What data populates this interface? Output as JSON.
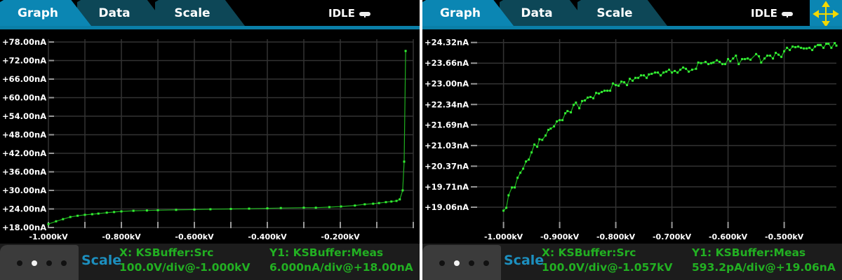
{
  "colors": {
    "tab_active": "#0b86b3",
    "tab_inactive": "#0d4757",
    "trace": "#33ee33",
    "scale_label": "#1c8fbf",
    "info_text": "#22b022"
  },
  "panels": [
    {
      "tabs": [
        {
          "label": "Graph",
          "active": true
        },
        {
          "label": "Data"
        },
        {
          "label": "Scale"
        }
      ],
      "status": "IDLE",
      "status_icon": "pill-icon",
      "bottom": {
        "scale_label": "Scale",
        "x_trace": "X: KSBuffer:Src",
        "x_scale": "100.0V/div@-1.000kV",
        "y_trace": "Y1: KSBuffer:Meas",
        "y_scale": "6.000nA/div@+18.00nA",
        "page_dots": 4,
        "active_dot": 2
      }
    },
    {
      "tabs": [
        {
          "label": "Graph",
          "active": true
        },
        {
          "label": "Data"
        },
        {
          "label": "Scale"
        }
      ],
      "status": "IDLE",
      "status_icon": "pill-icon",
      "corner_icon": "move-arrows-icon",
      "bottom": {
        "scale_label": "Scale",
        "x_trace": "X: KSBuffer:Src",
        "x_scale": "100.0V/div@-1.057kV",
        "y_trace": "Y1: KSBuffer:Meas",
        "y_scale": "593.2pA/div@+19.06nA",
        "page_dots": 4,
        "active_dot": 2
      }
    }
  ],
  "chart_data": [
    {
      "type": "line",
      "xlim": [
        -1.0,
        0.0
      ],
      "ylim": [
        18.0,
        78.0
      ],
      "grid": true,
      "x_ticks": [
        {
          "v": -1.0,
          "label": "-1.000kV"
        },
        {
          "v": -0.8,
          "label": "-0.800kV"
        },
        {
          "v": -0.6,
          "label": "-0.600kV"
        },
        {
          "v": -0.4,
          "label": "-0.400kV"
        },
        {
          "v": -0.2,
          "label": "-0.200kV"
        }
      ],
      "x_grid_step": 0.1,
      "y_ticks": [
        {
          "v": 78,
          "label": "+78.00nA"
        },
        {
          "v": 72,
          "label": "+72.00nA"
        },
        {
          "v": 66,
          "label": "+66.00nA"
        },
        {
          "v": 60,
          "label": "+60.00nA"
        },
        {
          "v": 54,
          "label": "+54.00nA"
        },
        {
          "v": 48,
          "label": "+48.00nA"
        },
        {
          "v": 42,
          "label": "+42.00nA"
        },
        {
          "v": 36,
          "label": "+36.00nA"
        },
        {
          "v": 30,
          "label": "+30.00nA"
        },
        {
          "v": 24,
          "label": "+24.00nA"
        },
        {
          "v": 18,
          "label": "+18.00nA"
        }
      ],
      "points": [
        [
          -1.0,
          19.1
        ],
        [
          -0.979,
          20.0
        ],
        [
          -0.96,
          20.7
        ],
        [
          -0.94,
          21.4
        ],
        [
          -0.92,
          21.8
        ],
        [
          -0.9,
          22.1
        ],
        [
          -0.88,
          22.3
        ],
        [
          -0.863,
          22.5
        ],
        [
          -0.84,
          22.8
        ],
        [
          -0.82,
          23.0
        ],
        [
          -0.8,
          23.2
        ],
        [
          -0.767,
          23.4
        ],
        [
          -0.73,
          23.5
        ],
        [
          -0.7,
          23.6
        ],
        [
          -0.65,
          23.7
        ],
        [
          -0.6,
          23.8
        ],
        [
          -0.556,
          23.9
        ],
        [
          -0.5,
          24.0
        ],
        [
          -0.45,
          24.1
        ],
        [
          -0.4,
          24.2
        ],
        [
          -0.363,
          24.3
        ],
        [
          -0.3,
          24.4
        ],
        [
          -0.267,
          24.4
        ],
        [
          -0.23,
          24.6
        ],
        [
          -0.198,
          24.8
        ],
        [
          -0.16,
          25.1
        ],
        [
          -0.133,
          25.5
        ],
        [
          -0.11,
          25.7
        ],
        [
          -0.094,
          25.9
        ],
        [
          -0.075,
          26.2
        ],
        [
          -0.06,
          26.4
        ],
        [
          -0.046,
          26.6
        ],
        [
          -0.037,
          27.1
        ],
        [
          -0.029,
          30.0
        ],
        [
          -0.025,
          39.3
        ],
        [
          -0.021,
          75.1
        ]
      ]
    },
    {
      "type": "line",
      "xlim": [
        -1.057,
        -0.407
      ],
      "ylim": [
        18.41,
        24.32
      ],
      "grid": true,
      "x_ticks": [
        {
          "v": -1.0,
          "label": "-1.000kV"
        },
        {
          "v": -0.9,
          "label": "-0.900kV"
        },
        {
          "v": -0.8,
          "label": "-0.800kV"
        },
        {
          "v": -0.7,
          "label": "-0.700kV"
        },
        {
          "v": -0.6,
          "label": "-0.600kV"
        },
        {
          "v": -0.5,
          "label": "-0.500kV"
        }
      ],
      "x_grid_step": 0.1,
      "y_ticks": [
        {
          "v": 24.32,
          "label": "+24.32nA"
        },
        {
          "v": 23.66,
          "label": "+23.66nA"
        },
        {
          "v": 23.0,
          "label": "+23.00nA"
        },
        {
          "v": 22.34,
          "label": "+22.34nA"
        },
        {
          "v": 21.69,
          "label": "+21.69nA"
        },
        {
          "v": 21.03,
          "label": "+21.03nA"
        },
        {
          "v": 20.37,
          "label": "+20.37nA"
        },
        {
          "v": 19.71,
          "label": "+19.71nA"
        },
        {
          "v": 19.06,
          "label": "+19.06nA"
        }
      ],
      "points": [
        [
          -1.0,
          18.95
        ],
        [
          -0.995,
          19.04
        ],
        [
          -0.991,
          19.44
        ],
        [
          -0.985,
          19.69
        ],
        [
          -0.98,
          19.69
        ],
        [
          -0.975,
          20.0
        ],
        [
          -0.97,
          20.16
        ],
        [
          -0.965,
          20.29
        ],
        [
          -0.96,
          20.52
        ],
        [
          -0.955,
          20.58
        ],
        [
          -0.95,
          20.81
        ],
        [
          -0.945,
          21.06
        ],
        [
          -0.94,
          20.99
        ],
        [
          -0.936,
          21.23
        ],
        [
          -0.931,
          21.21
        ],
        [
          -0.925,
          21.35
        ],
        [
          -0.92,
          21.53
        ],
        [
          -0.916,
          21.57
        ],
        [
          -0.91,
          21.64
        ],
        [
          -0.905,
          21.8
        ],
        [
          -0.9,
          21.84
        ],
        [
          -0.895,
          21.84
        ],
        [
          -0.89,
          22.06
        ],
        [
          -0.886,
          22.13
        ],
        [
          -0.88,
          22.09
        ],
        [
          -0.875,
          22.33
        ],
        [
          -0.871,
          22.4
        ],
        [
          -0.865,
          22.22
        ],
        [
          -0.86,
          22.45
        ],
        [
          -0.855,
          22.47
        ],
        [
          -0.85,
          22.56
        ],
        [
          -0.845,
          22.58
        ],
        [
          -0.84,
          22.54
        ],
        [
          -0.835,
          22.71
        ],
        [
          -0.83,
          22.69
        ],
        [
          -0.825,
          22.74
        ],
        [
          -0.82,
          22.78
        ],
        [
          -0.815,
          22.78
        ],
        [
          -0.81,
          22.78
        ],
        [
          -0.805,
          23.01
        ],
        [
          -0.8,
          22.96
        ],
        [
          -0.795,
          22.94
        ],
        [
          -0.79,
          23.07
        ],
        [
          -0.785,
          23.05
        ],
        [
          -0.78,
          22.96
        ],
        [
          -0.775,
          23.16
        ],
        [
          -0.77,
          23.1
        ],
        [
          -0.765,
          23.19
        ],
        [
          -0.76,
          23.19
        ],
        [
          -0.755,
          23.27
        ],
        [
          -0.75,
          23.27
        ],
        [
          -0.745,
          23.19
        ],
        [
          -0.741,
          23.3
        ],
        [
          -0.736,
          23.32
        ],
        [
          -0.73,
          23.36
        ],
        [
          -0.725,
          23.36
        ],
        [
          -0.72,
          23.27
        ],
        [
          -0.715,
          23.36
        ],
        [
          -0.71,
          23.39
        ],
        [
          -0.705,
          23.45
        ],
        [
          -0.7,
          23.36
        ],
        [
          -0.695,
          23.41
        ],
        [
          -0.69,
          23.36
        ],
        [
          -0.685,
          23.45
        ],
        [
          -0.68,
          23.52
        ],
        [
          -0.675,
          23.48
        ],
        [
          -0.67,
          23.39
        ],
        [
          -0.664,
          23.45
        ],
        [
          -0.657,
          23.48
        ],
        [
          -0.653,
          23.68
        ],
        [
          -0.648,
          23.66
        ],
        [
          -0.64,
          23.7
        ],
        [
          -0.635,
          23.63
        ],
        [
          -0.63,
          23.66
        ],
        [
          -0.626,
          23.68
        ],
        [
          -0.62,
          23.75
        ],
        [
          -0.615,
          23.7
        ],
        [
          -0.61,
          23.63
        ],
        [
          -0.605,
          23.63
        ],
        [
          -0.6,
          23.79
        ],
        [
          -0.596,
          23.72
        ],
        [
          -0.591,
          23.81
        ],
        [
          -0.586,
          23.9
        ],
        [
          -0.581,
          23.63
        ],
        [
          -0.575,
          23.79
        ],
        [
          -0.57,
          23.79
        ],
        [
          -0.565,
          23.81
        ],
        [
          -0.56,
          23.77
        ],
        [
          -0.55,
          23.95
        ],
        [
          -0.545,
          23.88
        ],
        [
          -0.541,
          23.68
        ],
        [
          -0.535,
          23.81
        ],
        [
          -0.53,
          23.9
        ],
        [
          -0.525,
          23.9
        ],
        [
          -0.52,
          23.81
        ],
        [
          -0.515,
          23.99
        ],
        [
          -0.51,
          23.93
        ],
        [
          -0.505,
          23.86
        ],
        [
          -0.5,
          24.04
        ],
        [
          -0.495,
          24.15
        ],
        [
          -0.49,
          24.08
        ],
        [
          -0.485,
          24.19
        ],
        [
          -0.48,
          24.17
        ],
        [
          -0.475,
          24.19
        ],
        [
          -0.47,
          24.15
        ],
        [
          -0.465,
          24.13
        ],
        [
          -0.46,
          24.13
        ],
        [
          -0.455,
          24.15
        ],
        [
          -0.45,
          24.08
        ],
        [
          -0.445,
          24.19
        ],
        [
          -0.44,
          24.24
        ],
        [
          -0.437,
          24.24
        ],
        [
          -0.435,
          24.24
        ],
        [
          -0.43,
          24.15
        ],
        [
          -0.425,
          24.28
        ],
        [
          -0.421,
          24.28
        ],
        [
          -0.416,
          24.15
        ],
        [
          -0.41,
          24.3
        ],
        [
          -0.407,
          24.22
        ]
      ]
    }
  ]
}
